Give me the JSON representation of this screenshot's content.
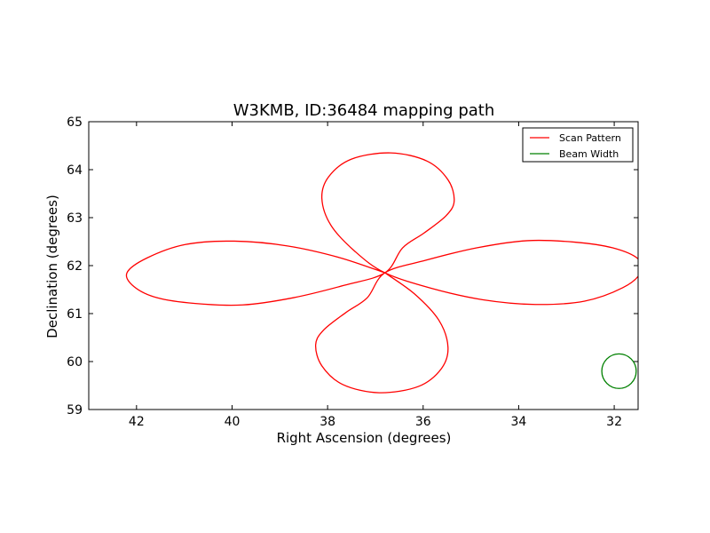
{
  "chart_data": {
    "type": "line",
    "title": "W3KMB, ID:36484 mapping path",
    "xlabel": "Right Ascension (degrees)",
    "ylabel": "Declination (degrees)",
    "xlim": [
      43,
      31.5
    ],
    "ylim": [
      59,
      65
    ],
    "x_inverted": true,
    "xticks": [
      42,
      40,
      38,
      36,
      34,
      32
    ],
    "yticks": [
      59,
      60,
      61,
      62,
      63,
      64,
      65
    ],
    "grid": false,
    "legend_position": "top-right",
    "center": {
      "x": 36.8,
      "y": 61.85
    },
    "series": [
      {
        "name": "Scan Pattern",
        "color": "#ff0000",
        "kind": "line",
        "x": [
          36.8,
          37.76,
          38.84,
          39.95,
          40.98,
          41.78,
          42.2,
          42.05,
          41.57,
          40.77,
          39.78,
          38.72,
          37.65,
          36.8,
          36.43,
          35.98,
          35.52,
          35.35,
          35.48,
          35.92,
          36.68,
          37.5,
          37.98,
          38.12,
          37.93,
          37.42,
          36.8,
          35.84,
          34.76,
          33.65,
          32.62,
          31.82,
          31.45,
          31.5,
          32.03,
          32.83,
          33.82,
          34.88,
          35.95,
          36.8,
          37.17,
          37.62,
          38.08,
          38.25,
          38.12,
          37.68,
          36.92,
          36.1,
          35.62,
          35.48,
          35.67,
          36.18,
          36.8
        ],
        "y": [
          61.85,
          62.17,
          62.41,
          62.51,
          62.44,
          62.16,
          61.85,
          61.56,
          61.33,
          61.21,
          61.18,
          61.33,
          61.59,
          61.85,
          62.37,
          62.68,
          63.04,
          63.35,
          63.79,
          64.18,
          64.35,
          64.22,
          63.85,
          63.4,
          62.84,
          62.29,
          61.85,
          61.53,
          61.29,
          61.19,
          61.26,
          61.54,
          61.85,
          62.14,
          62.37,
          62.49,
          62.52,
          62.37,
          62.11,
          61.85,
          61.33,
          61.02,
          60.66,
          60.35,
          59.91,
          59.52,
          59.35,
          59.48,
          59.85,
          60.3,
          60.86,
          61.41,
          61.85
        ]
      },
      {
        "name": "Beam Width",
        "color": "#008000",
        "kind": "circle",
        "center": {
          "x": 31.9,
          "y": 59.8
        },
        "radius_deg": 0.36
      }
    ]
  }
}
